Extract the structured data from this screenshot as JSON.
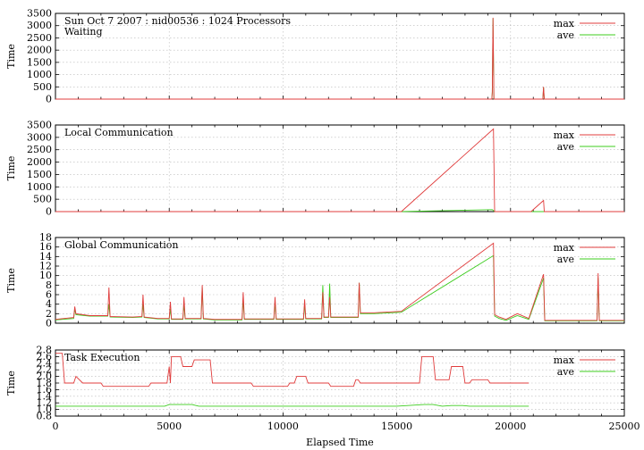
{
  "chart_data": [
    {
      "type": "line",
      "title": "Sun Oct 7 2007 : nid00536 : 1024 Processors",
      "subtitle": "Waiting",
      "ylabel": "Time",
      "xlabel": "",
      "xlim": [
        0,
        25000
      ],
      "ylim": [
        0,
        3500
      ],
      "yticks": [
        "0",
        "500",
        "1000",
        "1500",
        "2000",
        "2500",
        "3000",
        "3500"
      ],
      "grid": true,
      "legend": "top-right",
      "series": [
        {
          "name": "max",
          "color": "#e03c3c",
          "x": [
            0,
            19180,
            19200,
            19230,
            19270,
            19300,
            21420,
            21450,
            21480,
            25000
          ],
          "y": [
            0,
            0,
            300,
            3320,
            0,
            0,
            0,
            500,
            0,
            0
          ]
        },
        {
          "name": "ave",
          "color": "#3ccc1e",
          "x": [
            0,
            19180,
            19200,
            19230,
            19270,
            19300,
            21420,
            21450,
            21480,
            25000
          ],
          "y": [
            0,
            0,
            280,
            3300,
            0,
            0,
            0,
            480,
            0,
            0
          ]
        }
      ]
    },
    {
      "type": "line",
      "title": "Local Communication",
      "ylabel": "Time",
      "xlabel": "",
      "xlim": [
        0,
        25000
      ],
      "ylim": [
        0,
        3500
      ],
      "yticks": [
        "0",
        "500",
        "1000",
        "1500",
        "2000",
        "2500",
        "3000",
        "3500"
      ],
      "grid": true,
      "legend": "top-right",
      "series": [
        {
          "name": "max",
          "color": "#e03c3c",
          "x": [
            0,
            15200,
            19250,
            19300,
            20900,
            21450,
            21480,
            25000
          ],
          "y": [
            0,
            0,
            3340,
            0,
            0,
            450,
            0,
            0
          ]
        },
        {
          "name": "ave",
          "color": "#3ccc1e",
          "x": [
            0,
            15200,
            19200,
            19300,
            25000
          ],
          "y": [
            0,
            0,
            80,
            0,
            0
          ]
        }
      ]
    },
    {
      "type": "line",
      "title": "Global Communication",
      "ylabel": "Time",
      "xlabel": "",
      "xlim": [
        0,
        25000
      ],
      "ylim": [
        0,
        18
      ],
      "yticks": [
        "0",
        "2",
        "4",
        "6",
        "8",
        "10",
        "12",
        "14",
        "16",
        "18"
      ],
      "grid": true,
      "legend": "top-right",
      "series": [
        {
          "name": "max",
          "color": "#e03c3c",
          "x": [
            0,
            800,
            850,
            900,
            1500,
            2300,
            2350,
            2400,
            3400,
            3800,
            3850,
            3900,
            4500,
            5000,
            5050,
            5100,
            5600,
            5650,
            5700,
            6400,
            6450,
            6500,
            7000,
            8200,
            8250,
            8300,
            9600,
            9650,
            9700,
            10900,
            10950,
            11000,
            11700,
            11750,
            11800,
            12000,
            12050,
            12100,
            13300,
            13350,
            13400,
            14000,
            15200,
            19250,
            19300,
            19500,
            19800,
            20300,
            20800,
            21450,
            21500,
            22000,
            23800,
            23850,
            23900,
            25000
          ],
          "y": [
            0.8,
            1.2,
            3.5,
            2,
            1.6,
            1.6,
            7.5,
            1.4,
            1.3,
            1.4,
            6,
            1.3,
            1,
            1,
            4.5,
            0.9,
            0.9,
            5.5,
            1,
            1,
            8,
            1,
            0.8,
            0.8,
            6.5,
            0.9,
            0.9,
            5.5,
            0.9,
            0.9,
            5,
            1,
            1,
            6.5,
            1.3,
            1.3,
            5.5,
            1.3,
            1.3,
            8.5,
            2.2,
            2.2,
            2.5,
            16.8,
            1.8,
            1.3,
            0.8,
            2,
            1,
            10.3,
            0.6,
            0.6,
            0.6,
            10.5,
            0.6,
            0.6
          ]
        },
        {
          "name": "ave",
          "color": "#3ccc1e",
          "x": [
            0,
            800,
            850,
            900,
            1500,
            2300,
            2350,
            2400,
            3400,
            3800,
            3850,
            3900,
            4500,
            5000,
            5050,
            5100,
            5600,
            5650,
            5700,
            6400,
            6450,
            6500,
            7000,
            8200,
            8250,
            8300,
            9600,
            9650,
            9700,
            10900,
            10950,
            11000,
            11700,
            11750,
            11800,
            12000,
            12050,
            12100,
            13300,
            13350,
            13400,
            14000,
            15200,
            19250,
            19300,
            19500,
            19800,
            20300,
            20800,
            21450,
            21500,
            22000,
            23800,
            23850,
            23900,
            25000
          ],
          "y": [
            0.7,
            1,
            3,
            1.8,
            1.5,
            1.5,
            4,
            1.3,
            1.2,
            1.3,
            4,
            1.2,
            0.9,
            0.9,
            3,
            0.8,
            0.8,
            4,
            0.9,
            0.9,
            7.5,
            0.9,
            0.7,
            0.7,
            5,
            0.8,
            0.8,
            4.5,
            0.8,
            0.8,
            4,
            0.9,
            0.9,
            8,
            1.2,
            1.2,
            8.3,
            1.2,
            1.2,
            8.5,
            2,
            2,
            2.3,
            14.2,
            1.5,
            1,
            0.6,
            1.6,
            0.8,
            9.5,
            0.5,
            0.5,
            0.5,
            9.5,
            0.5,
            0.5
          ]
        }
      ]
    },
    {
      "type": "line",
      "title": "Task Execution",
      "ylabel": "Time",
      "xlabel": "Elapsed Time",
      "xlim": [
        0,
        25000
      ],
      "ylim": [
        0.8,
        2.8
      ],
      "yticks": [
        "0.8",
        "1.0",
        "1.2",
        "1.4",
        "1.6",
        "1.8",
        "2.0",
        "2.2",
        "2.4",
        "2.6",
        "2.8"
      ],
      "xticks": [
        "0",
        "5000",
        "10000",
        "15000",
        "20000",
        "25000"
      ],
      "grid": true,
      "legend": "top-right",
      "series": [
        {
          "name": "max",
          "color": "#e03c3c",
          "x": [
            0,
            300,
            400,
            800,
            900,
            1200,
            2000,
            2100,
            2200,
            4100,
            4200,
            4900,
            5000,
            5050,
            5100,
            5500,
            5600,
            6000,
            6100,
            6800,
            6900,
            8600,
            8700,
            10200,
            10300,
            10500,
            10600,
            11000,
            11100,
            12000,
            12100,
            13100,
            13200,
            13300,
            13400,
            14000,
            16000,
            16100,
            16200,
            16600,
            16700,
            17300,
            17400,
            17900,
            18000,
            18200,
            18300,
            19000,
            19100,
            20800
          ],
          "y": [
            2.7,
            2.7,
            1.8,
            1.8,
            2.0,
            1.8,
            1.8,
            1.7,
            1.7,
            1.7,
            1.8,
            1.8,
            2.3,
            1.8,
            2.6,
            2.6,
            2.3,
            2.3,
            2.5,
            2.5,
            1.8,
            1.8,
            1.7,
            1.7,
            1.8,
            1.8,
            2.0,
            2.0,
            1.8,
            1.8,
            1.7,
            1.7,
            1.9,
            1.9,
            1.8,
            1.8,
            1.8,
            2.6,
            2.6,
            2.6,
            1.9,
            1.9,
            2.3,
            2.3,
            1.8,
            1.8,
            1.9,
            1.9,
            1.8,
            1.8
          ]
        },
        {
          "name": "ave",
          "color": "#3ccc1e",
          "x": [
            0,
            3000,
            4800,
            5000,
            5400,
            6000,
            6300,
            8000,
            9000,
            12000,
            15000,
            16200,
            16600,
            17000,
            17400,
            17900,
            18200,
            20800
          ],
          "y": [
            1.1,
            1.1,
            1.1,
            1.15,
            1.15,
            1.15,
            1.1,
            1.1,
            1.1,
            1.1,
            1.1,
            1.15,
            1.15,
            1.1,
            1.12,
            1.12,
            1.1,
            1.1
          ]
        }
      ]
    }
  ]
}
